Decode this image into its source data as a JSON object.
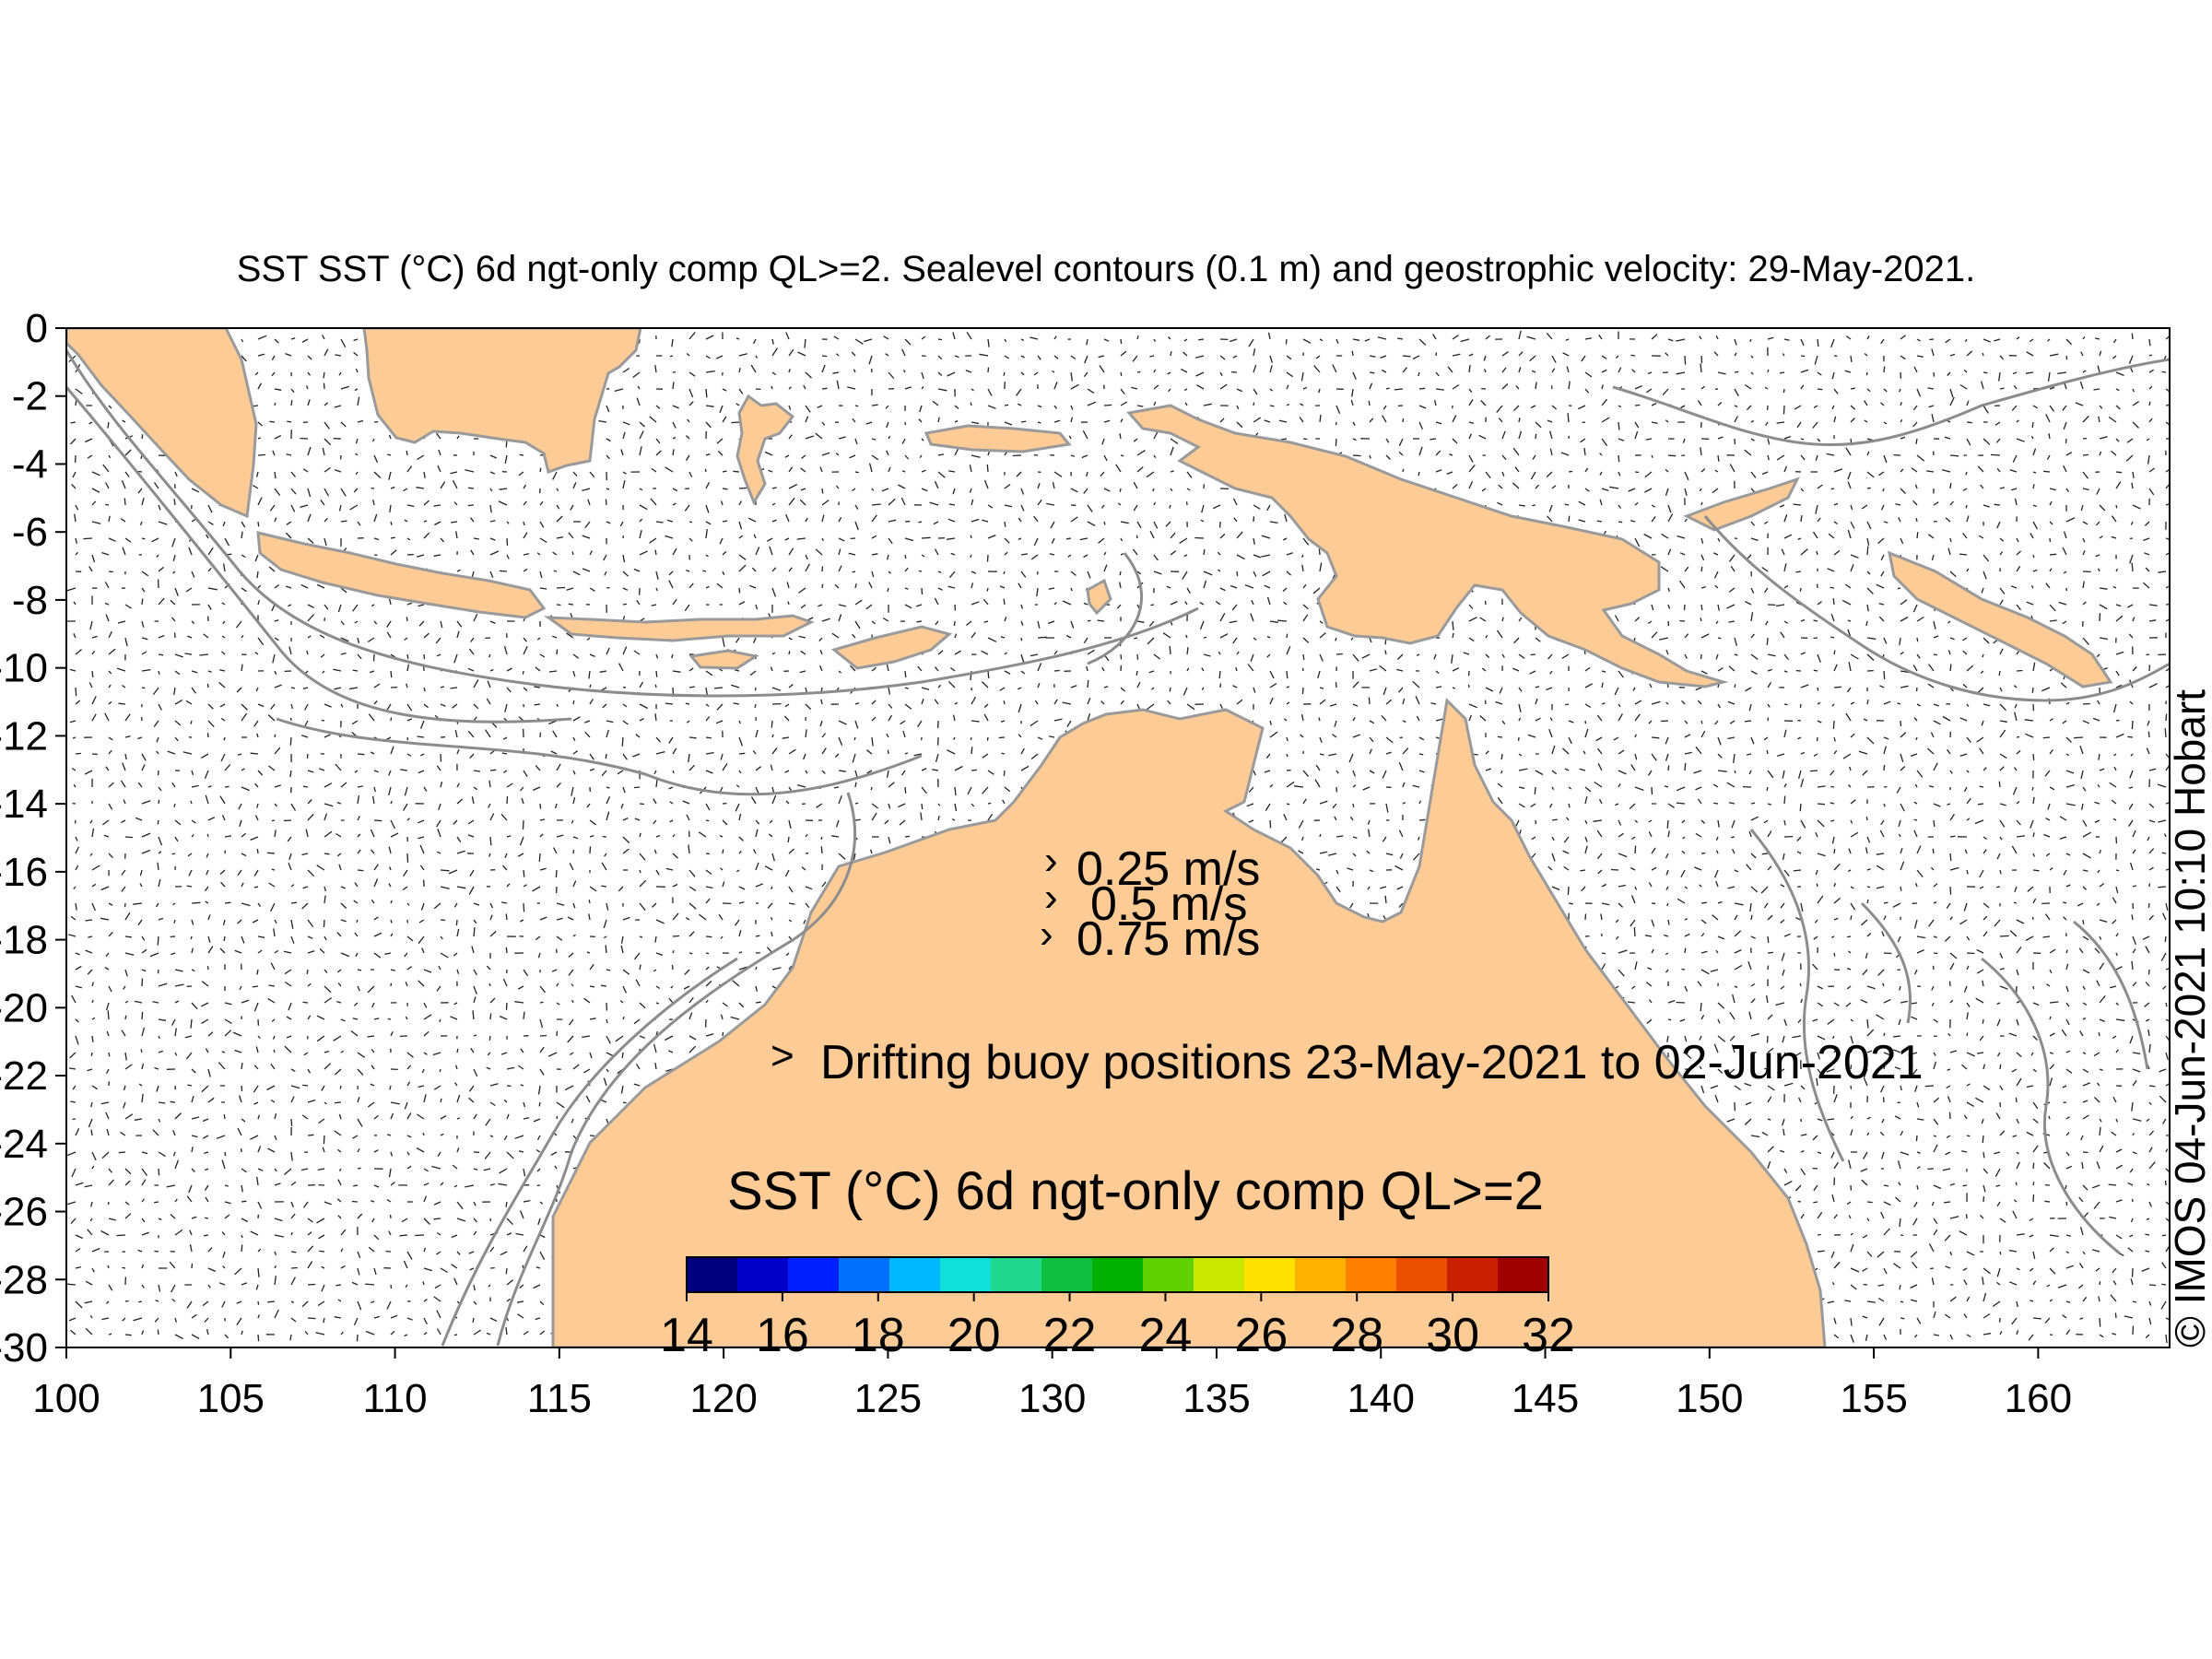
{
  "title": "SST SST (°C) 6d ngt-only comp QL>=2. Sealevel contours (0.1 m) and geostrophic velocity: 29-May-2021.",
  "x_axis": {
    "ticks": [
      "100",
      "105",
      "110",
      "115",
      "120",
      "125",
      "130",
      "135",
      "140",
      "145",
      "150",
      "155",
      "160"
    ]
  },
  "y_axis": {
    "ticks": [
      "0",
      "-2",
      "-4",
      "-6",
      "-8",
      "-10",
      "-12",
      "-14",
      "-16",
      "-18",
      "-20",
      "-22",
      "-24",
      "-26",
      "-28",
      "-30"
    ]
  },
  "velocity_legend": [
    "0.25 m/s",
    "0.5 m/s",
    "0.75 m/s"
  ],
  "buoy_legend": {
    "marker": ">",
    "text": "Drifting buoy positions 23-May-2021 to 02-Jun-2021",
    "color": "#ff00ff"
  },
  "colorbar": {
    "title": "SST (°C) 6d ngt-only comp QL>=2",
    "ticks": [
      "14",
      "16",
      "18",
      "20",
      "22",
      "24",
      "26",
      "28",
      "30",
      "32"
    ],
    "colors": [
      "#00007f",
      "#0000c8",
      "#0020ff",
      "#0070ff",
      "#00b8ff",
      "#10e0d8",
      "#20d890",
      "#10c040",
      "#00b000",
      "#60d000",
      "#c8e800",
      "#ffe000",
      "#ffb000",
      "#ff8000",
      "#e85000",
      "#c82000",
      "#a00000"
    ]
  },
  "credit": "© IMOS 04-Jun-2021 10:10 Hobart",
  "colors": {
    "land": "#fccb96",
    "contour": "#8c8c8c",
    "ocean": "#ffffff"
  },
  "map": {
    "lon_range": [
      100,
      164
    ],
    "lat_range": [
      -30,
      0
    ]
  }
}
